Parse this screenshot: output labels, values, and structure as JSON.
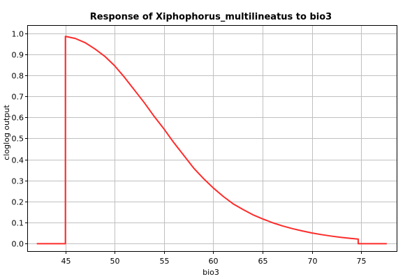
{
  "chart_data": {
    "type": "line",
    "title": "Response of Xiphophorus_multilineatus to bio3",
    "xlabel": "bio3",
    "ylabel": "cloglog output",
    "xlim": [
      41.2,
      78.6
    ],
    "ylim": [
      -0.035,
      1.035
    ],
    "xticks": [
      45,
      50,
      55,
      60,
      65,
      70,
      75
    ],
    "yticks": [
      0.0,
      0.1,
      0.2,
      0.3,
      0.4,
      0.5,
      0.6,
      0.7,
      0.8,
      0.9,
      1.0
    ],
    "ytick_labels": [
      "0.0",
      "0.1",
      "0.2",
      "0.3",
      "0.4",
      "0.5",
      "0.6",
      "0.7",
      "0.8",
      "0.9",
      "1.0"
    ],
    "grid": true,
    "series_color": "#ff2b2b",
    "series": [
      {
        "x": [
          42.1,
          45.0,
          45.0,
          46.0,
          47.0,
          48.0,
          49.0,
          50.0,
          51.0,
          52.0,
          53.0,
          54.0,
          55.0,
          56.0,
          57.0,
          58.0,
          59.0,
          60.0,
          61.0,
          62.0,
          63.0,
          64.0,
          65.0,
          66.0,
          67.0,
          68.0,
          69.0,
          70.0,
          71.0,
          72.0,
          73.0,
          74.0,
          74.7,
          74.7,
          77.6
        ],
        "y": [
          0.0,
          0.0,
          0.985,
          0.975,
          0.955,
          0.925,
          0.89,
          0.845,
          0.79,
          0.73,
          0.67,
          0.605,
          0.545,
          0.48,
          0.42,
          0.36,
          0.31,
          0.265,
          0.225,
          0.19,
          0.163,
          0.138,
          0.118,
          0.1,
          0.085,
          0.072,
          0.061,
          0.051,
          0.043,
          0.036,
          0.03,
          0.025,
          0.022,
          0.0,
          0.0
        ]
      }
    ]
  }
}
